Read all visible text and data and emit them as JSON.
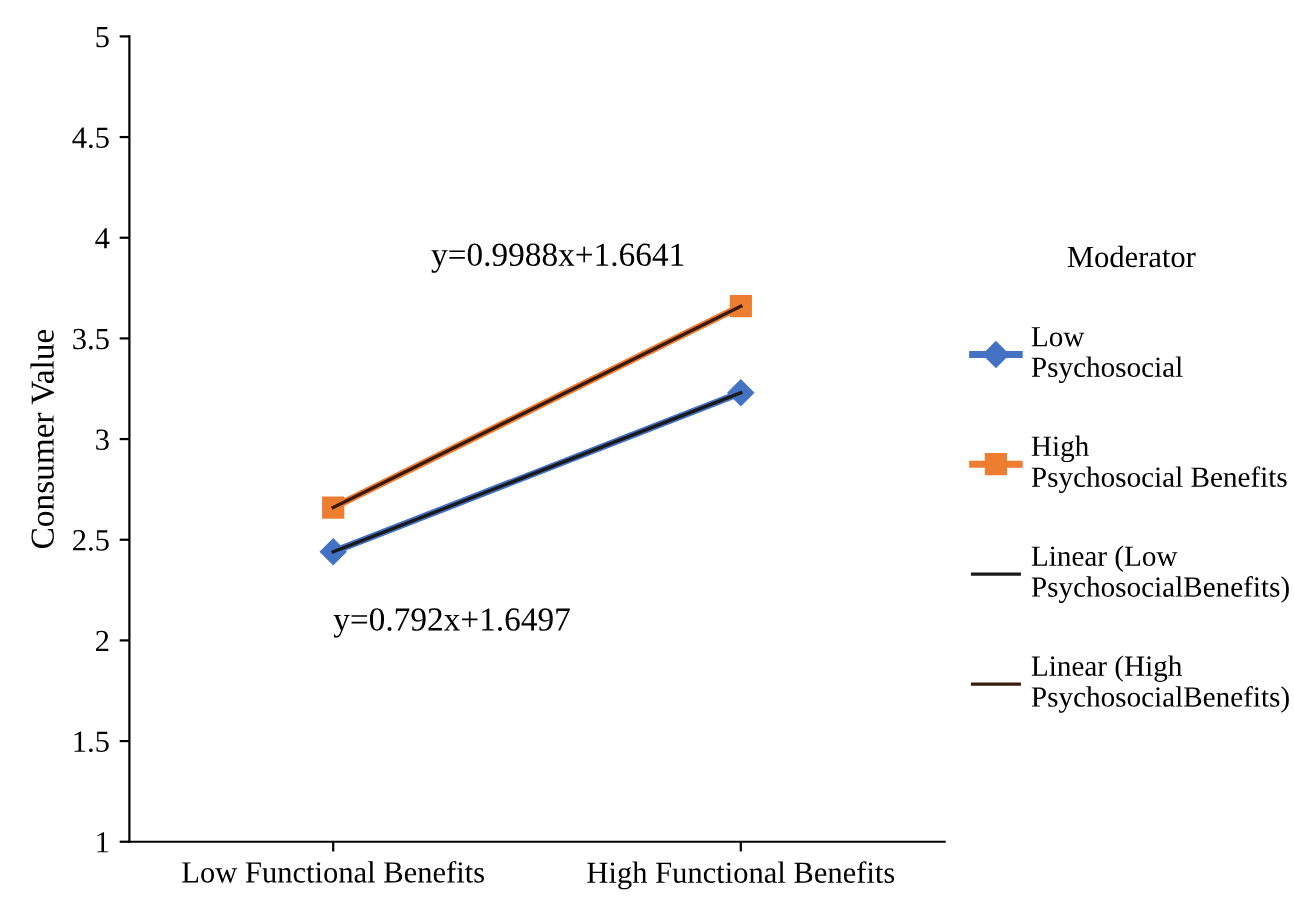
{
  "chart_data": {
    "type": "line",
    "ylabel": "Consumer Value",
    "legend_title": "Moderator",
    "categories": [
      "Low Functional Benefits",
      "High Functional Benefits"
    ],
    "series": [
      {
        "name": "Low\nPsychosocial",
        "color": "#4472c4",
        "values": [
          2.44,
          3.23
        ],
        "marker": "diamond"
      },
      {
        "name": "High\nPsychosocial Benefits",
        "color": "#ed7d31",
        "values": [
          2.66,
          3.66
        ],
        "marker": "square"
      },
      {
        "name": "Linear (Low\nPsychosocialBenefits)",
        "color": "#1a1a1a",
        "values": [
          2.44,
          3.23
        ],
        "marker": "none"
      },
      {
        "name": "Linear (High\nPsychosocialBenefits)",
        "color": "#3a1a0a",
        "values": [
          2.66,
          3.66
        ],
        "marker": "none"
      }
    ],
    "annotations": [
      {
        "text": "y=0.9988x+1.6641",
        "x": "High Functional Benefits",
        "y": 3.66
      },
      {
        "text": "y=0.792x+1.6497",
        "x": "Low Functional Benefits",
        "y": 2.44
      }
    ],
    "ylim": [
      1,
      5
    ],
    "yticks": [
      1,
      1.5,
      2,
      2.5,
      3,
      3.5,
      4,
      4.5,
      5
    ],
    "grid": false,
    "legend": "right"
  }
}
